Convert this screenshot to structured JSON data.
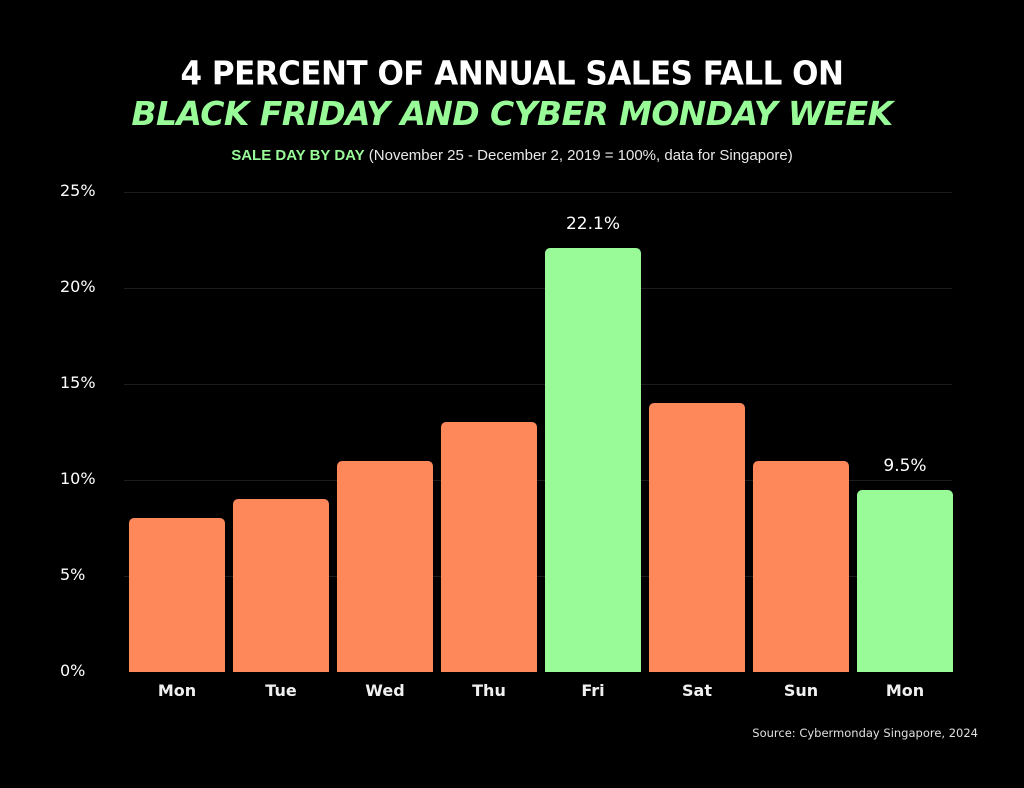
{
  "header": {
    "title_line1": "4 PERCENT OF ANNUAL SALES FALL ON",
    "title_line2": "BLACK FRIDAY AND CYBER MONDAY WEEK",
    "subtitle_highlight": "SALE DAY BY DAY",
    "subtitle_rest": " (November 25 - December 2, 2019 = 100%, data for Singapore)"
  },
  "footer": {
    "source": "Source: Cybermonday Singapore, 2024"
  },
  "colors": {
    "background": "#000000",
    "regular_bar": "#FF885B",
    "highlight_bar": "#98FB98",
    "title_accent": "#98FB98"
  },
  "chart_data": {
    "type": "bar",
    "title": "4 PERCENT OF ANNUAL SALES FALL ON BLACK FRIDAY AND CYBER MONDAY WEEK",
    "subtitle": "SALE DAY BY DAY (November 25 - December 2, 2019 = 100%, data for Singapore)",
    "xlabel": "",
    "ylabel": "",
    "categories": [
      "Mon",
      "Tue",
      "Wed",
      "Thu",
      "Fri",
      "Sat",
      "Sun",
      "Mon"
    ],
    "values": [
      8.0,
      9.0,
      11.0,
      13.0,
      22.1,
      14.0,
      11.0,
      9.5
    ],
    "highlighted": [
      false,
      false,
      false,
      false,
      true,
      false,
      false,
      true
    ],
    "data_labels": [
      "",
      "",
      "",
      "",
      "22.1%",
      "",
      "",
      "9.5%"
    ],
    "y_ticks": [
      "0%",
      "5%",
      "10%",
      "15%",
      "20%",
      "25%"
    ],
    "ylim": [
      0,
      25
    ],
    "grid": true,
    "legend": "none",
    "source": "Source: Cybermonday Singapore, 2024"
  }
}
